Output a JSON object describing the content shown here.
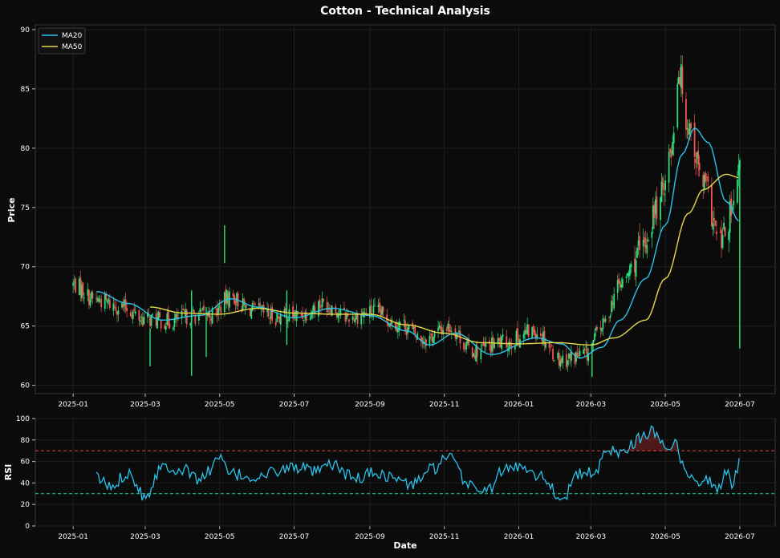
{
  "chart_data": [
    {
      "type": "candlestick",
      "title": "Cotton - Technical Analysis",
      "ylabel": "Price",
      "xlabel": "",
      "ylim": [
        59.3,
        90.4
      ],
      "yticks": [
        60,
        65,
        70,
        75,
        80,
        85,
        90
      ],
      "xlim": [
        "2024-12-01",
        "2026-07-30"
      ],
      "xticks": [
        "2025-01",
        "2025-03",
        "2025-05",
        "2025-07",
        "2025-09",
        "2025-11",
        "2026-01",
        "2026-03",
        "2026-05",
        "2026-07"
      ],
      "grid": true,
      "legend": "top-left",
      "colors": {
        "up": "#2ee07a",
        "down": "#f0564f",
        "ma20": "#29c3ea",
        "ma50": "#e6d84a",
        "background": "#0b0b0b"
      },
      "close_path": [
        [
          "2025-01-01",
          68.5
        ],
        [
          "2025-01-20",
          67.2
        ],
        [
          "2025-02-10",
          66.6
        ],
        [
          "2025-03-01",
          65.6
        ],
        [
          "2025-03-20",
          65.4
        ],
        [
          "2025-04-10",
          65.9
        ],
        [
          "2025-04-25",
          66.0
        ],
        [
          "2025-05-10",
          67.5
        ],
        [
          "2025-05-25",
          66.4
        ],
        [
          "2025-06-15",
          65.8
        ],
        [
          "2025-07-05",
          65.9
        ],
        [
          "2025-07-25",
          66.9
        ],
        [
          "2025-08-15",
          65.8
        ],
        [
          "2025-09-05",
          66.2
        ],
        [
          "2025-09-25",
          65.2
        ],
        [
          "2025-10-15",
          63.9
        ],
        [
          "2025-11-05",
          64.9
        ],
        [
          "2025-11-25",
          62.9
        ],
        [
          "2025-12-20",
          63.6
        ],
        [
          "2026-01-15",
          64.6
        ],
        [
          "2026-02-05",
          62.2
        ],
        [
          "2026-02-25",
          62.6
        ],
        [
          "2026-03-10",
          65.0
        ],
        [
          "2026-03-25",
          68.5
        ],
        [
          "2026-04-10",
          71.0
        ],
        [
          "2026-04-25",
          75.0
        ],
        [
          "2026-05-05",
          79.5
        ],
        [
          "2026-05-12",
          86.5
        ],
        [
          "2026-05-20",
          82.0
        ],
        [
          "2026-06-01",
          77.0
        ],
        [
          "2026-06-15",
          72.0
        ],
        [
          "2026-06-25",
          74.5
        ],
        [
          "2026-07-01",
          78.0
        ]
      ],
      "series": [
        {
          "name": "MA20",
          "points": [
            [
              "2025-01-20",
              67.9
            ],
            [
              "2025-02-15",
              66.9
            ],
            [
              "2025-03-15",
              65.5
            ],
            [
              "2025-04-15",
              65.9
            ],
            [
              "2025-05-10",
              67.3
            ],
            [
              "2025-06-01",
              66.6
            ],
            [
              "2025-07-01",
              65.7
            ],
            [
              "2025-08-01",
              66.5
            ],
            [
              "2025-09-01",
              65.9
            ],
            [
              "2025-10-01",
              64.6
            ],
            [
              "2025-10-20",
              63.4
            ],
            [
              "2025-11-10",
              64.4
            ],
            [
              "2025-12-10",
              62.6
            ],
            [
              "2026-01-15",
              64.0
            ],
            [
              "2026-02-05",
              63.5
            ],
            [
              "2026-02-20",
              62.3
            ],
            [
              "2026-03-10",
              63.2
            ],
            [
              "2026-03-25",
              65.5
            ],
            [
              "2026-04-15",
              69.0
            ],
            [
              "2026-05-01",
              73.5
            ],
            [
              "2026-05-15",
              79.5
            ],
            [
              "2026-05-25",
              81.7
            ],
            [
              "2026-06-05",
              80.5
            ],
            [
              "2026-06-20",
              75.5
            ],
            [
              "2026-07-01",
              73.8
            ]
          ]
        },
        {
          "name": "MA50",
          "points": [
            [
              "2025-03-05",
              66.6
            ],
            [
              "2025-04-01",
              66.1
            ],
            [
              "2025-05-01",
              66.0
            ],
            [
              "2025-06-01",
              66.5
            ],
            [
              "2025-07-01",
              66.1
            ],
            [
              "2025-08-01",
              66.0
            ],
            [
              "2025-09-01",
              66.0
            ],
            [
              "2025-10-01",
              65.1
            ],
            [
              "2025-11-01",
              64.4
            ],
            [
              "2025-12-01",
              63.6
            ],
            [
              "2026-01-01",
              63.5
            ],
            [
              "2026-02-01",
              63.6
            ],
            [
              "2026-03-01",
              63.4
            ],
            [
              "2026-03-20",
              64.0
            ],
            [
              "2026-04-15",
              65.5
            ],
            [
              "2026-05-01",
              69.0
            ],
            [
              "2026-05-20",
              74.5
            ],
            [
              "2026-06-01",
              76.5
            ],
            [
              "2026-06-20",
              77.8
            ],
            [
              "2026-07-01",
              77.5
            ]
          ]
        }
      ],
      "spikes": [
        [
          "2025-03-05",
          61.6,
          64.8
        ],
        [
          "2025-04-08",
          60.8,
          68.0
        ],
        [
          "2025-05-05",
          70.3,
          73.5
        ],
        [
          "2025-04-20",
          62.4,
          66.6
        ],
        [
          "2025-06-25",
          63.4,
          68.0
        ],
        [
          "2026-03-02",
          60.7,
          63.3
        ],
        [
          "2026-07-01",
          63.1,
          78.5
        ]
      ]
    },
    {
      "type": "line",
      "title": "",
      "xlabel": "Date",
      "ylabel": "RSI",
      "ylim": [
        0,
        100
      ],
      "yticks": [
        0,
        20,
        40,
        60,
        80,
        100
      ],
      "xlim": [
        "2024-12-01",
        "2026-07-30"
      ],
      "xticks": [
        "2025-01",
        "2025-03",
        "2025-05",
        "2025-07",
        "2025-09",
        "2025-11",
        "2026-01",
        "2026-03",
        "2026-05",
        "2026-07"
      ],
      "overbought": 70,
      "oversold": 30,
      "colors": {
        "rsi": "#29c3ea",
        "overbought": "#e0443c",
        "oversold": "#2bd3a0"
      },
      "series": [
        {
          "name": "RSI",
          "points": [
            [
              "2025-01-20",
              45
            ],
            [
              "2025-02-01",
              36
            ],
            [
              "2025-02-15",
              50
            ],
            [
              "2025-03-01",
              28
            ],
            [
              "2025-03-15",
              56
            ],
            [
              "2025-04-01",
              52
            ],
            [
              "2025-04-15",
              44
            ],
            [
              "2025-05-01",
              62
            ],
            [
              "2025-05-10",
              48
            ],
            [
              "2025-06-01",
              45
            ],
            [
              "2025-06-20",
              52
            ],
            [
              "2025-07-01",
              55
            ],
            [
              "2025-07-20",
              50
            ],
            [
              "2025-08-01",
              57
            ],
            [
              "2025-08-20",
              44
            ],
            [
              "2025-09-05",
              50
            ],
            [
              "2025-09-20",
              45
            ],
            [
              "2025-10-05",
              38
            ],
            [
              "2025-10-20",
              52
            ],
            [
              "2025-11-05",
              63
            ],
            [
              "2025-11-20",
              40
            ],
            [
              "2025-12-05",
              32
            ],
            [
              "2025-12-20",
              52
            ],
            [
              "2026-01-05",
              56
            ],
            [
              "2026-01-20",
              46
            ],
            [
              "2026-02-05",
              26
            ],
            [
              "2026-02-20",
              48
            ],
            [
              "2026-03-05",
              50
            ],
            [
              "2026-03-15",
              72
            ],
            [
              "2026-03-25",
              68
            ],
            [
              "2026-04-05",
              78
            ],
            [
              "2026-04-15",
              85
            ],
            [
              "2026-04-22",
              88
            ],
            [
              "2026-05-01",
              74
            ],
            [
              "2026-05-10",
              80
            ],
            [
              "2026-05-15",
              55
            ],
            [
              "2026-05-25",
              42
            ],
            [
              "2026-06-05",
              44
            ],
            [
              "2026-06-12",
              32
            ],
            [
              "2026-06-20",
              50
            ],
            [
              "2026-06-25",
              40
            ],
            [
              "2026-07-01",
              58
            ]
          ]
        }
      ]
    }
  ]
}
